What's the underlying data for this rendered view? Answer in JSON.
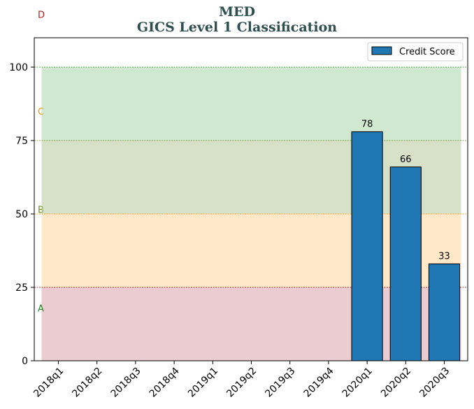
{
  "chart_data": {
    "type": "bar",
    "title": "MED",
    "subtitle": "GICS Level 1 Classification",
    "categories": [
      "2018q1",
      "2018q2",
      "2018q3",
      "2018q4",
      "2019q1",
      "2019q2",
      "2019q3",
      "2019q4",
      "2020q1",
      "2020q2",
      "2020q3"
    ],
    "series": [
      {
        "name": "Credit Score",
        "values": [
          null,
          null,
          null,
          null,
          null,
          null,
          null,
          null,
          78,
          66,
          33
        ],
        "color": "#1f77b4"
      }
    ],
    "data_labels": [
      "78",
      "66",
      "33"
    ],
    "ylim": [
      0,
      110
    ],
    "yticks": [
      0,
      25,
      50,
      75,
      100
    ],
    "bands": [
      {
        "label": "A",
        "from": 0,
        "to": 25,
        "fill": "#d9a3ab",
        "line": "#8b0000",
        "label_color": "#228b22",
        "label_y": 18
      },
      {
        "label": "B",
        "from": 25,
        "to": 50,
        "fill": "#ffd699",
        "line": "#ff8c00",
        "label_color": "#6b8e23",
        "label_y": 51.5
      },
      {
        "label": "C",
        "from": 50,
        "to": 75,
        "fill": "#b5c99a",
        "line": "#6b8e23",
        "label_color": "#ff8c00",
        "label_y": 85
      },
      {
        "label": "D",
        "from": 75,
        "to": 100,
        "fill": "#a8d5a8",
        "line": "#228b22",
        "label_color": "#b22222",
        "label_y": 118
      }
    ],
    "legend_position": "top-right",
    "grid": false
  }
}
